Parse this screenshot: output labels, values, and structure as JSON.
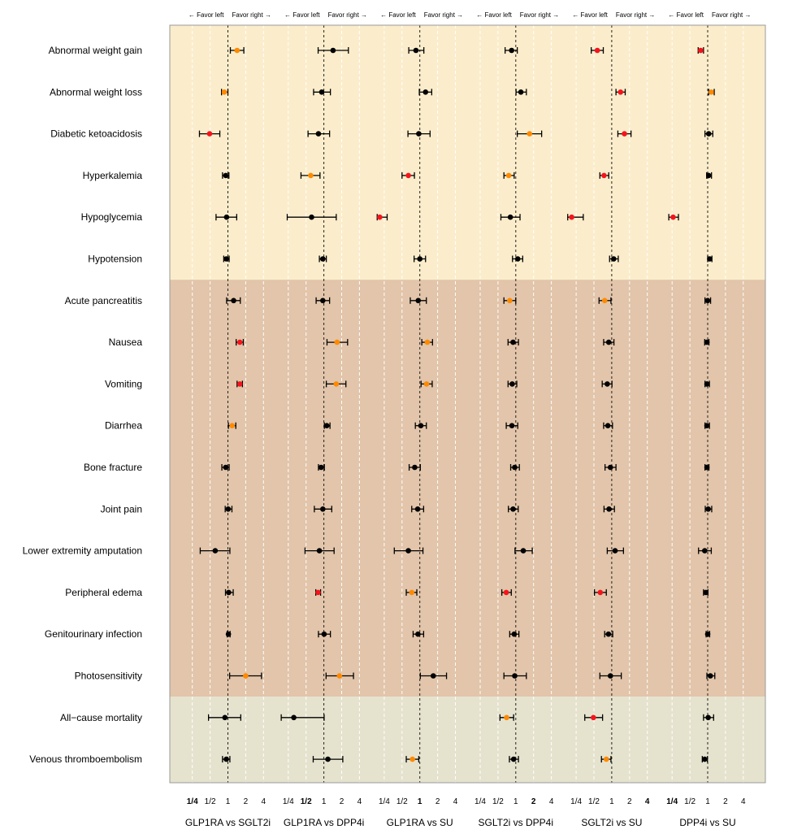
{
  "chart_data": {
    "type": "forest",
    "scale": "log2",
    "reference_value": 1,
    "xlim": [
      0.25,
      4
    ],
    "tick_labels": [
      "1/4",
      "1/2",
      "1",
      "2",
      "4"
    ],
    "tick_values": [
      0.25,
      0.5,
      1,
      2,
      4
    ],
    "favor_left_label": "← Favor left",
    "favor_right_label": "Favor right →",
    "grid": true,
    "colors": {
      "black": "#000000",
      "orange": "#FF8A00",
      "red": "#F5141C"
    },
    "bands": [
      {
        "rows": [
          0,
          5
        ],
        "color": "#FBEDCB"
      },
      {
        "rows": [
          6,
          15
        ],
        "color": "#E2C5AA"
      },
      {
        "rows": [
          16,
          17
        ],
        "color": "#E5E3CE"
      }
    ],
    "outcomes": [
      "Abnormal weight gain",
      "Abnormal weight loss",
      "Diabetic ketoacidosis",
      "Hyperkalemia",
      "Hypoglycemia",
      "Hypotension",
      "Acute pancreatitis",
      "Nausea",
      "Vomiting",
      "Diarrhea",
      "Bone fracture",
      "Joint pain",
      "Lower extremity amputation",
      "Peripheral edema",
      "Genitourinary infection",
      "Photosensitivity",
      "All−cause mortality",
      "Venous thromboembolism"
    ],
    "comparisons": [
      {
        "name": "GLP1RA vs SGLT2i",
        "estimates": [
          [
            1.43,
            1.1,
            1.86,
            "orange"
          ],
          [
            0.87,
            0.78,
            1.0,
            "orange"
          ],
          [
            0.49,
            0.33,
            0.73,
            "red"
          ],
          [
            0.92,
            0.81,
            1.04,
            "black"
          ],
          [
            0.95,
            0.63,
            1.41,
            "black"
          ],
          [
            0.94,
            0.85,
            1.05,
            "black"
          ],
          [
            1.25,
            0.95,
            1.62,
            "black"
          ],
          [
            1.59,
            1.38,
            1.82,
            "red"
          ],
          [
            1.59,
            1.43,
            1.76,
            "red"
          ],
          [
            1.18,
            1.02,
            1.36,
            "orange"
          ],
          [
            0.92,
            0.79,
            1.05,
            "black"
          ],
          [
            1.01,
            0.9,
            1.17,
            "black"
          ],
          [
            0.61,
            0.34,
            1.08,
            "black"
          ],
          [
            1.03,
            0.91,
            1.23,
            "black"
          ],
          [
            1.02,
            0.97,
            1.09,
            "black"
          ],
          [
            2.0,
            1.07,
            3.7,
            "orange"
          ],
          [
            0.89,
            0.47,
            1.65,
            "black"
          ],
          [
            0.94,
            0.81,
            1.08,
            "black"
          ]
        ]
      },
      {
        "name": "GLP1RA vs DPP4i",
        "estimates": [
          [
            1.43,
            0.8,
            2.6,
            "black"
          ],
          [
            0.92,
            0.67,
            1.29,
            "black"
          ],
          [
            0.81,
            0.54,
            1.25,
            "black"
          ],
          [
            0.6,
            0.41,
            0.86,
            "orange"
          ],
          [
            0.62,
            0.24,
            1.62,
            "black"
          ],
          [
            0.96,
            0.84,
            1.1,
            "black"
          ],
          [
            0.96,
            0.74,
            1.25,
            "black"
          ],
          [
            1.67,
            1.13,
            2.52,
            "orange"
          ],
          [
            1.62,
            1.1,
            2.36,
            "orange"
          ],
          [
            1.12,
            1.02,
            1.27,
            "black"
          ],
          [
            0.9,
            0.81,
            1.02,
            "black"
          ],
          [
            0.96,
            0.69,
            1.36,
            "black"
          ],
          [
            0.84,
            0.48,
            1.49,
            "black"
          ],
          [
            0.8,
            0.73,
            0.88,
            "red"
          ],
          [
            1.01,
            0.81,
            1.29,
            "black"
          ],
          [
            1.84,
            1.09,
            3.17,
            "orange"
          ],
          [
            0.31,
            0.19,
            1.01,
            "black"
          ],
          [
            1.17,
            0.66,
            2.09,
            "black"
          ]
        ]
      },
      {
        "name": "GLP1RA vs SU",
        "estimates": [
          [
            0.86,
            0.65,
            1.17,
            "black"
          ],
          [
            1.25,
            0.98,
            1.59,
            "black"
          ],
          [
            0.96,
            0.63,
            1.49,
            "black"
          ],
          [
            0.64,
            0.5,
            0.81,
            "red"
          ],
          [
            0.21,
            0.19,
            0.28,
            "red"
          ],
          [
            1.0,
            0.8,
            1.25,
            "black"
          ],
          [
            0.94,
            0.69,
            1.29,
            "black"
          ],
          [
            1.34,
            1.08,
            1.64,
            "orange"
          ],
          [
            1.3,
            1.05,
            1.62,
            "orange"
          ],
          [
            1.04,
            0.84,
            1.29,
            "black"
          ],
          [
            0.82,
            0.66,
            1.02,
            "black"
          ],
          [
            0.92,
            0.73,
            1.16,
            "black"
          ],
          [
            0.64,
            0.37,
            1.13,
            "black"
          ],
          [
            0.73,
            0.59,
            0.89,
            "orange"
          ],
          [
            0.93,
            0.77,
            1.16,
            "black"
          ],
          [
            1.69,
            1.02,
            2.83,
            "black"
          ],
          null,
          [
            0.75,
            0.59,
            0.96,
            "orange"
          ]
        ]
      },
      {
        "name": "SGLT2i vs DPP4i",
        "estimates": [
          [
            0.85,
            0.66,
            1.06,
            "black"
          ],
          [
            1.22,
            1.01,
            1.51,
            "black"
          ],
          [
            1.71,
            1.06,
            2.74,
            "orange"
          ],
          [
            0.76,
            0.63,
            0.94,
            "orange"
          ],
          [
            0.81,
            0.56,
            1.18,
            "black"
          ],
          [
            1.08,
            0.88,
            1.31,
            "black"
          ],
          [
            0.79,
            0.63,
            1.0,
            "orange"
          ],
          [
            0.9,
            0.74,
            1.11,
            "black"
          ],
          [
            0.87,
            0.74,
            1.04,
            "black"
          ],
          [
            0.86,
            0.69,
            1.08,
            "black"
          ],
          [
            0.96,
            0.82,
            1.15,
            "black"
          ],
          [
            0.9,
            0.75,
            1.1,
            "black"
          ],
          [
            1.34,
            0.97,
            1.9,
            "black"
          ],
          [
            0.69,
            0.58,
            0.84,
            "red"
          ],
          [
            0.94,
            0.79,
            1.13,
            "black"
          ],
          [
            0.96,
            0.63,
            1.51,
            "black"
          ],
          [
            0.7,
            0.54,
            0.92,
            "orange"
          ],
          [
            0.92,
            0.78,
            1.11,
            "black"
          ]
        ]
      },
      {
        "name": "SGLT2i vs SU",
        "estimates": [
          [
            0.57,
            0.45,
            0.72,
            "red"
          ],
          [
            1.41,
            1.18,
            1.69,
            "red"
          ],
          [
            1.64,
            1.27,
            2.12,
            "red"
          ],
          [
            0.74,
            0.63,
            0.89,
            "red"
          ],
          [
            0.21,
            0.18,
            0.33,
            "red"
          ],
          [
            1.08,
            0.92,
            1.29,
            "black"
          ],
          [
            0.76,
            0.61,
            0.97,
            "orange"
          ],
          [
            0.89,
            0.73,
            1.09,
            "black"
          ],
          [
            0.84,
            0.69,
            1.01,
            "black"
          ],
          [
            0.86,
            0.73,
            1.03,
            "black"
          ],
          [
            0.95,
            0.77,
            1.18,
            "black"
          ],
          [
            0.9,
            0.74,
            1.11,
            "black"
          ],
          [
            1.14,
            0.84,
            1.58,
            "black"
          ],
          [
            0.64,
            0.51,
            0.81,
            "red"
          ],
          [
            0.88,
            0.76,
            1.04,
            "black"
          ],
          [
            0.95,
            0.63,
            1.45,
            "black"
          ],
          [
            0.49,
            0.35,
            0.7,
            "red"
          ],
          [
            0.81,
            0.67,
            0.97,
            "orange"
          ]
        ]
      },
      {
        "name": "DPP4i vs SU",
        "estimates": [
          [
            0.76,
            0.69,
            0.85,
            "red"
          ],
          [
            1.15,
            1.04,
            1.29,
            "orange"
          ],
          [
            1.04,
            0.9,
            1.22,
            "black"
          ],
          [
            1.04,
            0.96,
            1.16,
            "black"
          ],
          [
            0.26,
            0.22,
            0.32,
            "red"
          ],
          [
            1.08,
            1.0,
            1.18,
            "black"
          ],
          [
            1.0,
            0.9,
            1.12,
            "black"
          ],
          [
            0.97,
            0.89,
            1.05,
            "black"
          ],
          [
            0.97,
            0.9,
            1.07,
            "black"
          ],
          [
            0.97,
            0.9,
            1.07,
            "black"
          ],
          [
            0.97,
            0.9,
            1.05,
            "black"
          ],
          [
            1.02,
            0.91,
            1.17,
            "black"
          ],
          [
            0.89,
            0.7,
            1.15,
            "black"
          ],
          [
            0.93,
            0.85,
            1.01,
            "black"
          ],
          [
            1.0,
            0.94,
            1.08,
            "black"
          ],
          [
            1.11,
            0.97,
            1.32,
            "black"
          ],
          [
            1.02,
            0.85,
            1.26,
            "black"
          ],
          [
            0.89,
            0.81,
            0.99,
            "black"
          ]
        ]
      }
    ]
  }
}
